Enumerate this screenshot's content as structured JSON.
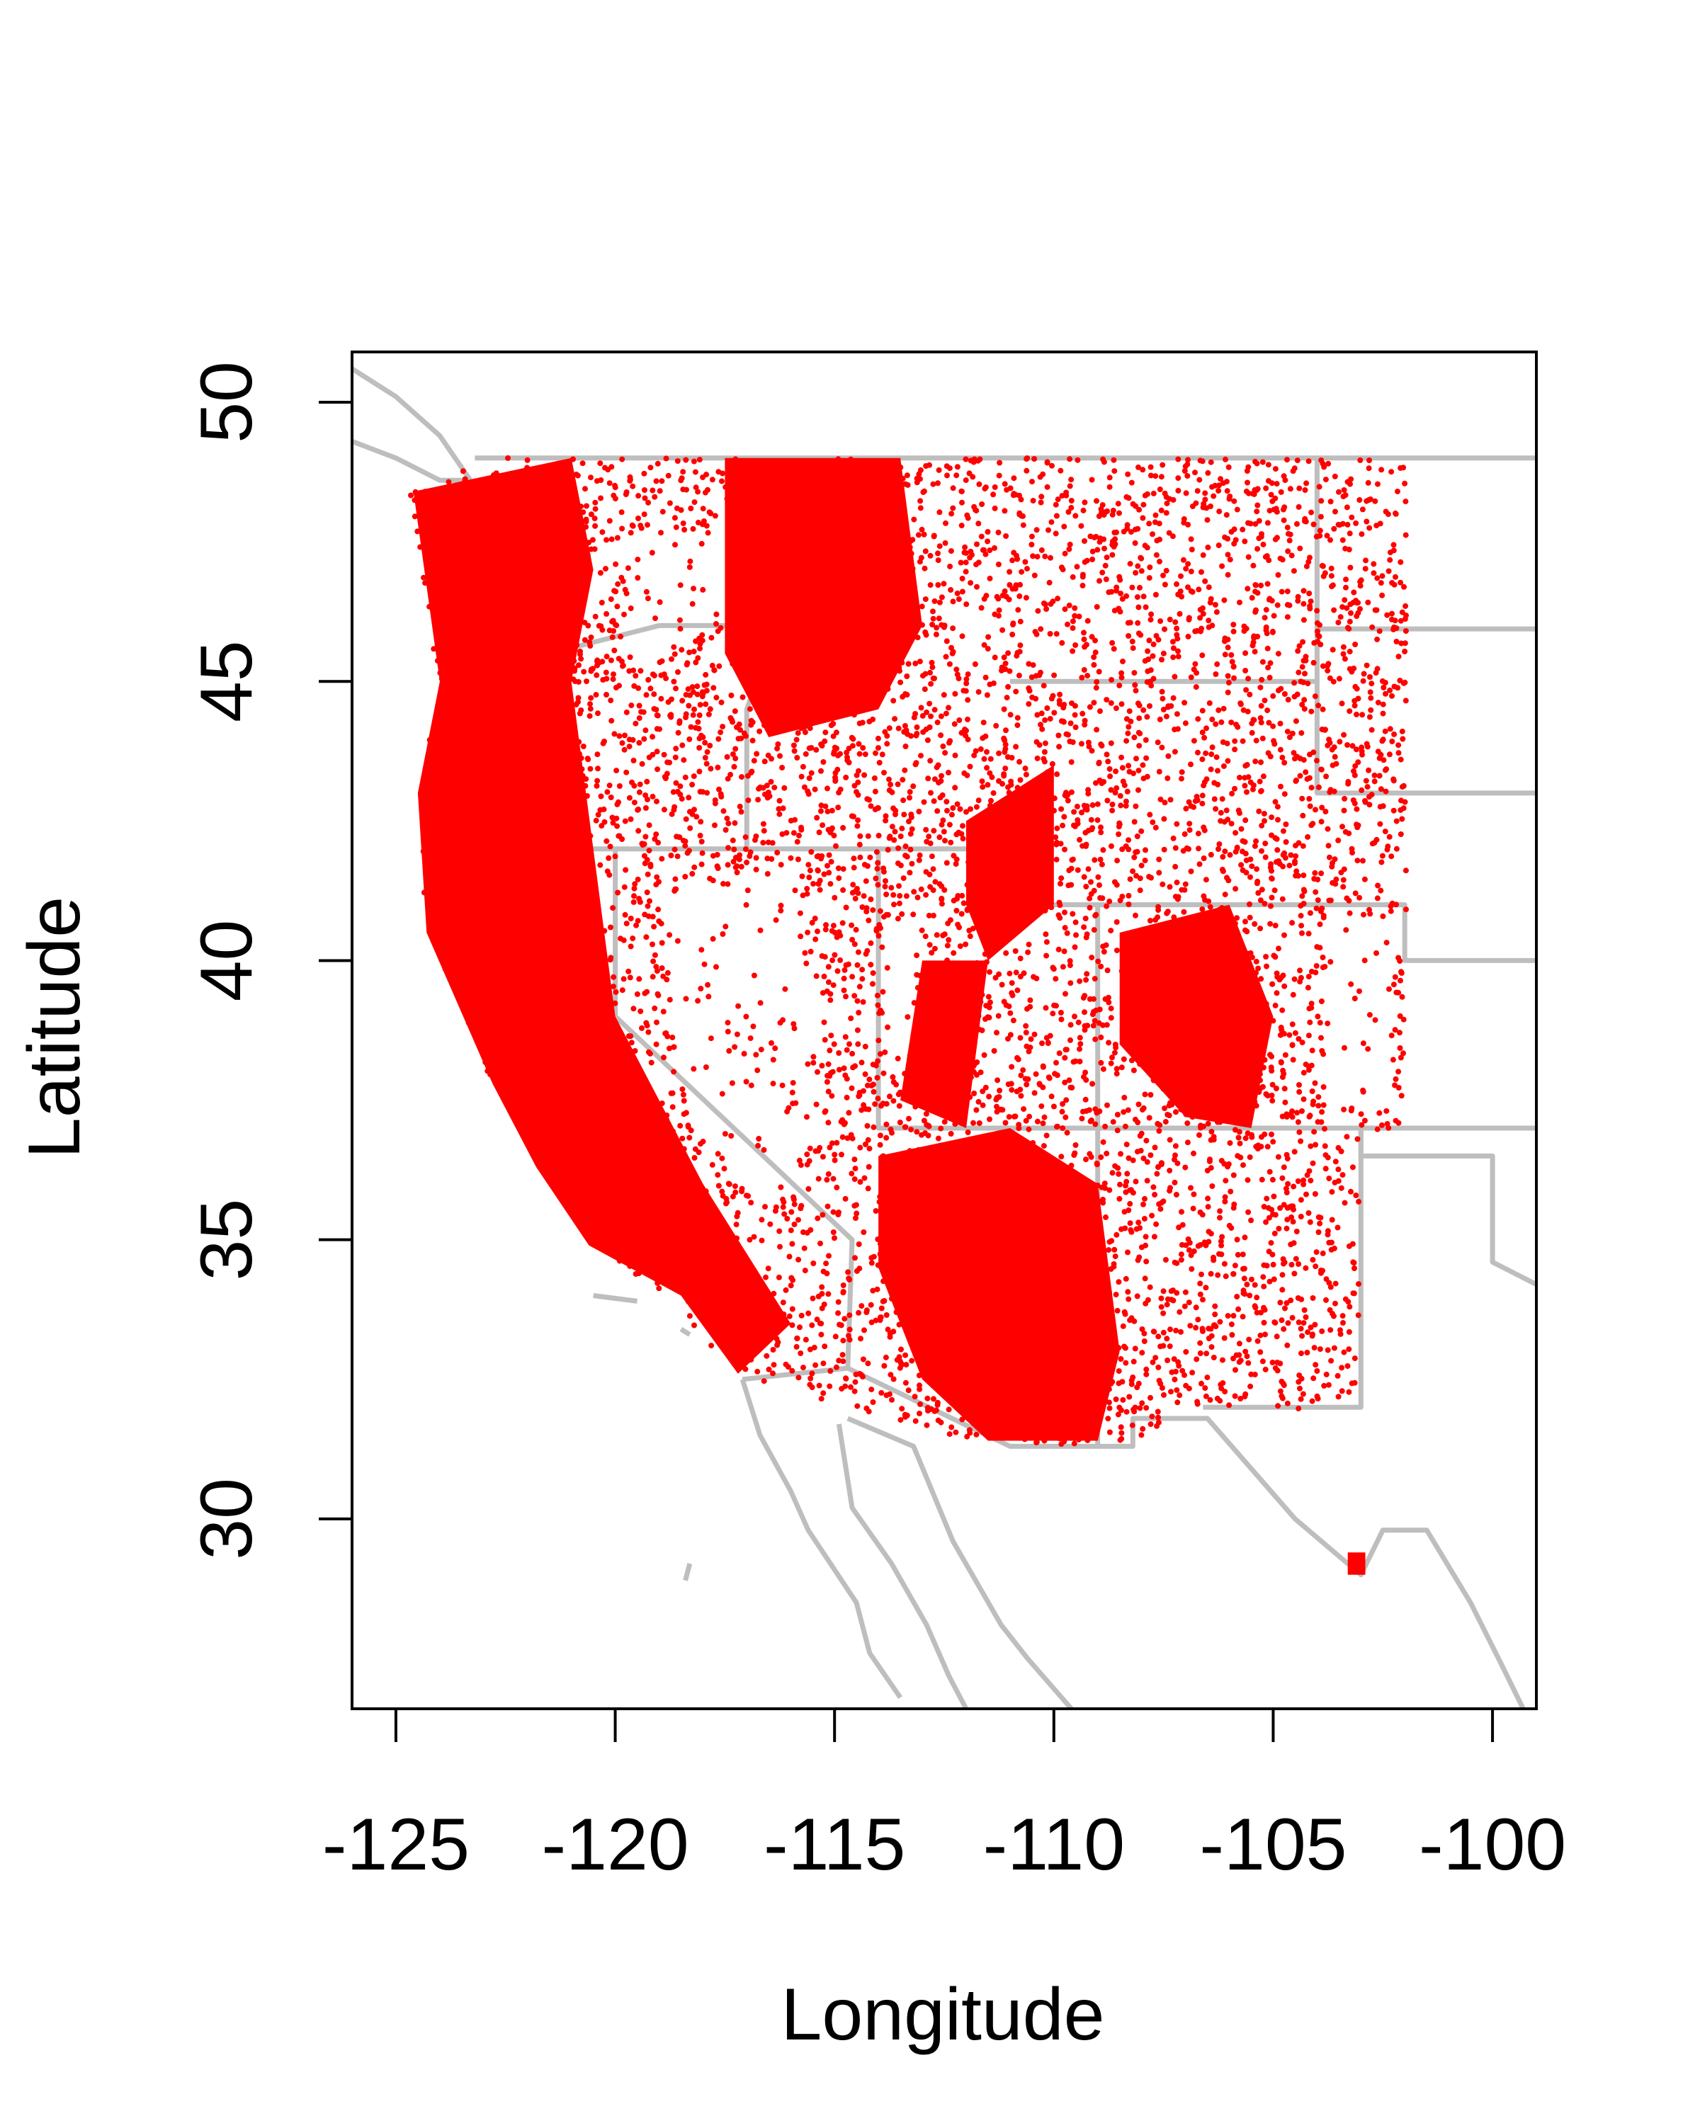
{
  "chart_data": {
    "type": "scatter",
    "title": "",
    "xlabel": "Longitude",
    "ylabel": "Latitude",
    "xlim": [
      -126.0,
      -99.0
    ],
    "ylim": [
      26.6,
      50.9
    ],
    "xticks": [
      -125,
      -120,
      -115,
      -110,
      -105,
      -100
    ],
    "yticks": [
      30,
      35,
      40,
      45,
      50
    ],
    "xtick_labels": [
      "-125",
      "-120",
      "-115",
      "-110",
      "-105",
      "-100"
    ],
    "ytick_labels": [
      "30",
      "35",
      "40",
      "45",
      "50"
    ],
    "grid": false,
    "legend": "none",
    "colors": {
      "points": "#ff0000",
      "basemap": "#bebebe",
      "axes": "#000000"
    },
    "point_extent_polygon": [
      [
        -124.7,
        48.4
      ],
      [
        -122.8,
        49.0
      ],
      [
        -101.97,
        49.0
      ],
      [
        -101.97,
        36.97
      ],
      [
        -103.03,
        36.97
      ],
      [
        -103.03,
        31.99
      ],
      [
        -106.55,
        31.94
      ],
      [
        -108.1,
        31.32
      ],
      [
        -111.55,
        31.32
      ],
      [
        -117.17,
        32.55
      ],
      [
        -119.04,
        34.15
      ],
      [
        -120.6,
        34.9
      ],
      [
        -121.5,
        36.1
      ],
      [
        -122.8,
        37.8
      ],
      [
        -124.34,
        40.53
      ],
      [
        -124.5,
        42.98
      ],
      [
        -124.03,
        44.94
      ]
    ],
    "dense_point_regions": [
      [
        [
          -124.6,
          48.4
        ],
        [
          -121,
          49
        ],
        [
          -120.5,
          47
        ],
        [
          -121,
          45
        ],
        [
          -120.5,
          42
        ],
        [
          -120,
          39
        ],
        [
          -118,
          36
        ],
        [
          -116,
          33.5
        ],
        [
          -117.2,
          32.6
        ],
        [
          -118.5,
          34
        ],
        [
          -120.6,
          34.9
        ],
        [
          -121.8,
          36.3
        ],
        [
          -122.8,
          37.8
        ],
        [
          -124.3,
          40.5
        ],
        [
          -124.5,
          43
        ],
        [
          -124,
          45
        ]
      ],
      [
        [
          -117.5,
          49
        ],
        [
          -113.5,
          49
        ],
        [
          -113,
          46
        ],
        [
          -114,
          44.5
        ],
        [
          -116.5,
          44
        ],
        [
          -117.5,
          45.5
        ]
      ],
      [
        [
          -114,
          36.5
        ],
        [
          -111,
          37
        ],
        [
          -109,
          36
        ],
        [
          -108.5,
          33
        ],
        [
          -109,
          31.4
        ],
        [
          -111.5,
          31.4
        ],
        [
          -113,
          32.5
        ],
        [
          -114,
          34.5
        ]
      ],
      [
        [
          -108.5,
          40.5
        ],
        [
          -106,
          41
        ],
        [
          -105,
          39
        ],
        [
          -105.5,
          37
        ],
        [
          -107,
          37.2
        ],
        [
          -108.5,
          38.5
        ]
      ],
      [
        [
          -112,
          42.5
        ],
        [
          -110,
          43.5
        ],
        [
          -110,
          41
        ],
        [
          -111.5,
          40
        ],
        [
          -112,
          41
        ]
      ],
      [
        [
          -113,
          40
        ],
        [
          -111.5,
          40
        ],
        [
          -112,
          37
        ],
        [
          -113.5,
          37.5
        ]
      ],
      [
        [
          -103.3,
          29.4
        ],
        [
          -102.9,
          29.4
        ],
        [
          -102.9,
          29.0
        ],
        [
          -103.3,
          29.0
        ]
      ]
    ],
    "sparse_regions": [
      [
        [
          -118.5,
          41.5
        ],
        [
          -116,
          41.5
        ],
        [
          -115.2,
          39
        ],
        [
          -115.5,
          37
        ],
        [
          -116.5,
          35.8
        ],
        [
          -118.2,
          37
        ],
        [
          -118.8,
          39.5
        ]
      ],
      [
        [
          -119.8,
          47.6
        ],
        [
          -117.2,
          47.8
        ],
        [
          -117.3,
          46.2
        ],
        [
          -119.5,
          45.3
        ]
      ],
      [
        [
          -113.8,
          40.5
        ],
        [
          -113.2,
          40.5
        ],
        [
          -113.2,
          38.5
        ],
        [
          -113.8,
          38.5
        ]
      ],
      [
        [
          -103.8,
          40.8
        ],
        [
          -102.3,
          40.8
        ],
        [
          -102.3,
          37.5
        ],
        [
          -103.8,
          37.5
        ]
      ]
    ],
    "basemap_lines": [
      [
        [
          -126,
          50.6
        ],
        [
          -125,
          50.1
        ],
        [
          -124,
          49.4
        ],
        [
          -123.3,
          48.6
        ],
        [
          -124,
          48.6
        ],
        [
          -125,
          49
        ],
        [
          -126,
          49.3
        ]
      ],
      [
        [
          -123.2,
          49.0
        ],
        [
          -99,
          49.0
        ]
      ],
      [
        [
          -124.0,
          46.2
        ],
        [
          -121,
          45.6
        ],
        [
          -119,
          46
        ],
        [
          -117,
          46
        ]
      ],
      [
        [
          -117,
          49
        ],
        [
          -117,
          46
        ],
        [
          -116.5,
          45.6
        ],
        [
          -117,
          44.5
        ],
        [
          -117,
          42
        ]
      ],
      [
        [
          -124.2,
          42
        ],
        [
          -111,
          42
        ],
        [
          -111,
          41
        ],
        [
          -109,
          41
        ],
        [
          -104,
          41
        ],
        [
          -102,
          41
        ],
        [
          -102,
          40
        ],
        [
          -99,
          40
        ]
      ],
      [
        [
          -120,
          42
        ],
        [
          -120,
          39
        ],
        [
          -114.6,
          35
        ],
        [
          -114.7,
          32.7
        ]
      ],
      [
        [
          -114,
          42
        ],
        [
          -114,
          37
        ],
        [
          -109,
          37
        ],
        [
          -102,
          37
        ],
        [
          -99,
          37
        ]
      ],
      [
        [
          -111,
          45
        ],
        [
          -104,
          45
        ],
        [
          -104,
          49
        ]
      ],
      [
        [
          -104,
          45.94
        ],
        [
          -99,
          45.94
        ]
      ],
      [
        [
          -104,
          45
        ],
        [
          -104,
          43
        ],
        [
          -99,
          43
        ]
      ],
      [
        [
          -109,
          41
        ],
        [
          -109,
          31.33
        ]
      ],
      [
        [
          -103,
          37
        ],
        [
          -103,
          36.5
        ],
        [
          -100,
          36.5
        ],
        [
          -100,
          34.6
        ],
        [
          -99,
          34.2
        ]
      ],
      [
        [
          -103,
          37
        ],
        [
          -103,
          32
        ],
        [
          -106.6,
          32
        ]
      ],
      [
        [
          -117.1,
          32.5
        ],
        [
          -114.7,
          32.7
        ],
        [
          -111,
          31.3
        ],
        [
          -108.2,
          31.3
        ],
        [
          -108.2,
          31.8
        ],
        [
          -106.5,
          31.8
        ],
        [
          -104.5,
          30
        ],
        [
          -103,
          29
        ],
        [
          -102.5,
          29.8
        ],
        [
          -101.5,
          29.8
        ],
        [
          -100.5,
          28.5
        ],
        [
          -99.8,
          27.4
        ],
        [
          -99.3,
          26.6
        ]
      ],
      [
        [
          -117.1,
          32.5
        ],
        [
          -116.7,
          31.5
        ],
        [
          -116,
          30.5
        ],
        [
          -115.6,
          29.8
        ],
        [
          -114.5,
          28.5
        ],
        [
          -114.2,
          27.6
        ],
        [
          -113.5,
          26.8
        ]
      ],
      [
        [
          -114.9,
          31.7
        ],
        [
          -114.6,
          30.2
        ],
        [
          -113.7,
          29.2
        ],
        [
          -112.9,
          28.1
        ],
        [
          -112.4,
          27.2
        ],
        [
          -112.0,
          26.6
        ]
      ],
      [
        [
          -114.7,
          31.8
        ],
        [
          -113.2,
          31.3
        ],
        [
          -112.3,
          29.6
        ],
        [
          -111.2,
          28.1
        ],
        [
          -110.6,
          27.5
        ],
        [
          -109.6,
          26.6
        ]
      ],
      [
        [
          -120.5,
          34.0
        ],
        [
          -119.5,
          33.9
        ]
      ],
      [
        [
          -118.5,
          33.4
        ],
        [
          -118.3,
          33.3
        ]
      ],
      [
        [
          -118.4,
          28.9
        ],
        [
          -118.3,
          29.2
        ]
      ]
    ]
  }
}
